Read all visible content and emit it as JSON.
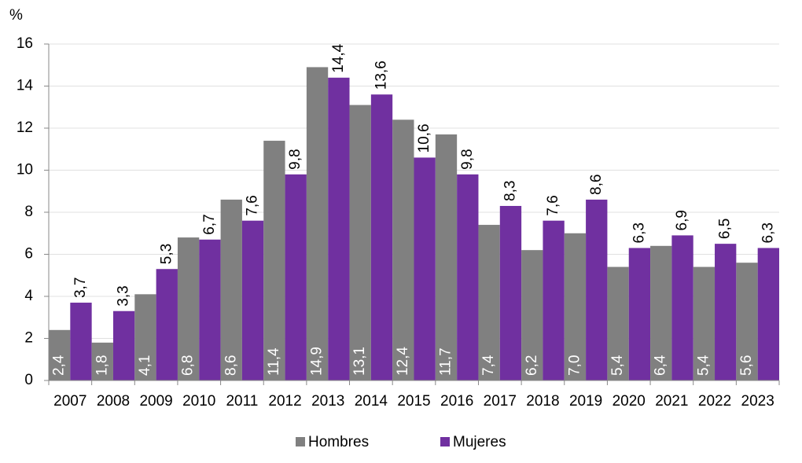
{
  "chart_data": {
    "type": "bar",
    "y_label": "%",
    "categories": [
      "2007",
      "2008",
      "2009",
      "2010",
      "2011",
      "2012",
      "2013",
      "2014",
      "2015",
      "2016",
      "2017",
      "2018",
      "2019",
      "2020",
      "2021",
      "2022",
      "2023"
    ],
    "series": [
      {
        "name": "Hombres",
        "color": "#808080",
        "values": [
          2.4,
          1.8,
          4.1,
          6.8,
          8.6,
          11.4,
          14.9,
          13.1,
          12.4,
          11.7,
          7.4,
          6.2,
          7.0,
          5.4,
          6.4,
          5.4,
          5.6
        ],
        "value_labels": [
          "2,4",
          "1,8",
          "4,1",
          "6,8",
          "8,6",
          "11,4",
          "14,9",
          "13,1",
          "12,4",
          "11,7",
          "7,4",
          "6,2",
          "7,0",
          "5,4",
          "6,4",
          "5,4",
          "5,6"
        ]
      },
      {
        "name": "Mujeres",
        "color": "#7030a0",
        "values": [
          3.7,
          3.3,
          5.3,
          6.7,
          7.6,
          9.8,
          14.4,
          13.6,
          10.6,
          9.8,
          8.3,
          7.6,
          8.6,
          6.3,
          6.9,
          6.5,
          6.3
        ],
        "value_labels": [
          "3,7",
          "3,3",
          "5,3",
          "6,7",
          "7,6",
          "9,8",
          "14,4",
          "13,6",
          "10,6",
          "9,8",
          "8,3",
          "7,6",
          "8,6",
          "6,3",
          "6,9",
          "6,5",
          "6,3"
        ]
      }
    ],
    "ylim": [
      0,
      16
    ],
    "yticks": [
      0,
      2,
      4,
      6,
      8,
      10,
      12,
      14,
      16
    ],
    "grid": true,
    "legend": "bottom"
  }
}
